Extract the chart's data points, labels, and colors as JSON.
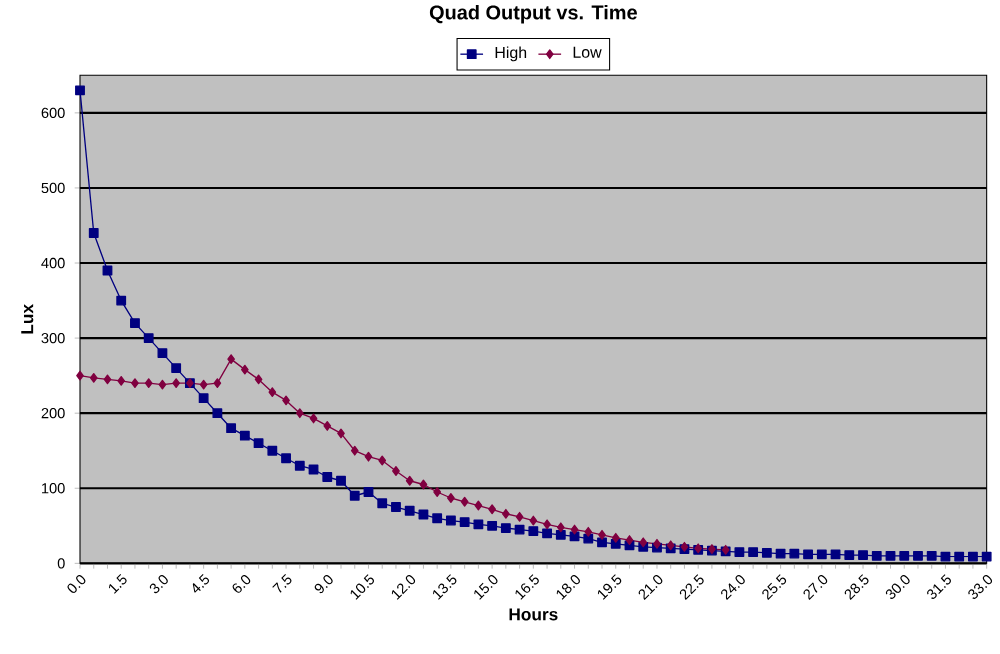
{
  "chart_data": {
    "type": "line",
    "title": "Quad Output vs. Time",
    "xlabel": "Hours",
    "ylabel": "Lux",
    "categories": [
      "0.0",
      null,
      null,
      "1.5",
      null,
      null,
      "3.0",
      null,
      null,
      "4.5",
      null,
      null,
      "6.0",
      null,
      null,
      "7.5",
      null,
      null,
      "9.0",
      null,
      null,
      "10.5",
      null,
      null,
      "12.0",
      null,
      null,
      "13.5",
      null,
      null,
      "15.0",
      null,
      null,
      "16.5",
      null,
      null,
      "18.0",
      null,
      null,
      "19.5",
      null,
      null,
      "21.0",
      null,
      null,
      "22.5",
      null,
      null,
      "24.0",
      null,
      null,
      "25.5",
      null,
      null,
      "27.0",
      null,
      null,
      "28.5",
      null,
      null,
      "30.0",
      null,
      null,
      "31.5",
      null,
      null,
      "33.0"
    ],
    "series": [
      {
        "name": "High",
        "color": "#000080",
        "marker": "square",
        "values": [
          630,
          440,
          390,
          350,
          320,
          300,
          280,
          260,
          240,
          220,
          200,
          180,
          170,
          160,
          150,
          140,
          130,
          125,
          115,
          110,
          90,
          95,
          80,
          75,
          70,
          65,
          60,
          57,
          55,
          52,
          50,
          47,
          45,
          43,
          40,
          38,
          36,
          33,
          28,
          26,
          24,
          22,
          21,
          20,
          19,
          18,
          17,
          16,
          15,
          15,
          14,
          13,
          13,
          12,
          12,
          12,
          11,
          11,
          10,
          10,
          10,
          10,
          10,
          9,
          9,
          9,
          9
        ]
      },
      {
        "name": "Low",
        "color": "#800040",
        "marker": "diamond",
        "values": [
          250,
          247,
          245,
          243,
          240,
          240,
          238,
          240,
          240,
          238,
          240,
          272,
          258,
          245,
          228,
          217,
          200,
          193,
          183,
          173,
          150,
          142,
          137,
          123,
          110,
          105,
          95,
          87,
          82,
          77,
          72,
          66,
          62,
          57,
          52,
          48,
          45,
          42,
          38,
          34,
          31,
          28,
          26,
          24,
          22,
          20,
          19,
          18,
          null,
          null,
          null,
          null,
          null,
          null,
          null,
          null,
          null,
          null,
          null,
          null,
          null,
          null,
          null,
          null,
          null,
          null,
          null
        ]
      }
    ],
    "ylim": [
      0,
      650
    ],
    "yticks": [
      0,
      100,
      200,
      300,
      400,
      500,
      600
    ],
    "grid": "y",
    "legend": "top",
    "line_style": "solid"
  }
}
